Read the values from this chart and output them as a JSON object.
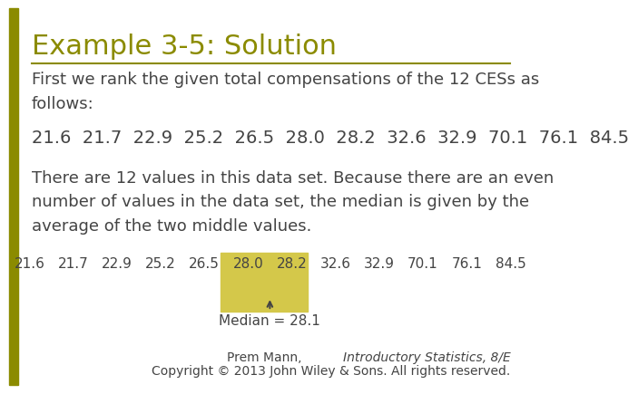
{
  "title": "Example 3-5: Solution",
  "title_color": "#8B8B00",
  "title_fontsize": 22,
  "background_color": "#FFFFFF",
  "left_bar_color": "#8B8B00",
  "body_text_1": "First we rank the given total compensations of the 12 CESs as\nfollows:",
  "body_text_2": "21.6  21.7  22.9  25.2  26.5  28.0  28.2  32.6  32.9  70.1  76.1  84.5",
  "body_text_3": "There are 12 values in this data set. Because there are an even\nnumber of values in the data set, the median is given by the\naverage of the two middle values.",
  "values": [
    21.6,
    21.7,
    22.9,
    25.2,
    26.5,
    28.0,
    28.2,
    32.6,
    32.9,
    70.1,
    76.1,
    84.5
  ],
  "highlight_indices": [
    5,
    6
  ],
  "highlight_bg": "#D4C84A",
  "median_label": "Median = 28.1",
  "footer_normal": "Prem Mann, ",
  "footer_italic": "Introductory Statistics, 8/E",
  "footer_line2": "Copyright © 2013 John Wiley & Sons. All rights reserved.",
  "body_fontsize": 13,
  "values_fontsize": 14,
  "footer_fontsize": 10,
  "left_bar_width": 0.018,
  "separator_color": "#8B8B00",
  "gray_text_color": "#444444"
}
